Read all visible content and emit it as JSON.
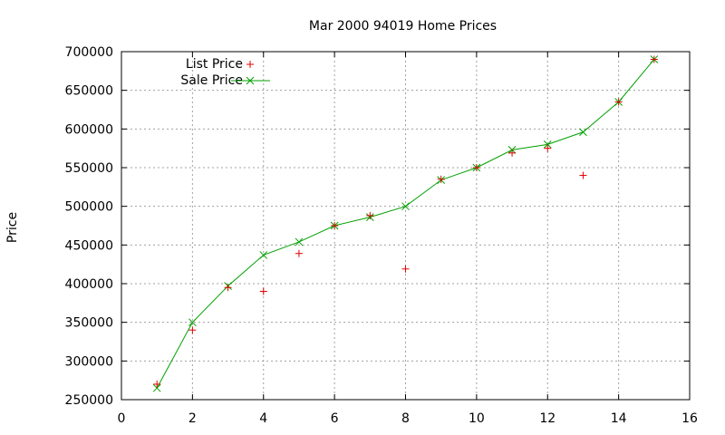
{
  "chart_data": {
    "type": "scatter",
    "title": "Mar 2000 94019 Home Prices",
    "xlabel": "",
    "ylabel": "Price",
    "xlim": [
      0,
      16
    ],
    "ylim": [
      250000,
      700000
    ],
    "xticks": [
      0,
      2,
      4,
      6,
      8,
      10,
      12,
      14,
      16
    ],
    "yticks": [
      250000,
      300000,
      350000,
      400000,
      450000,
      500000,
      550000,
      600000,
      650000,
      700000
    ],
    "grid": true,
    "legend_position": "top-left",
    "series": [
      {
        "name": "List Price",
        "style": "points",
        "marker": "plus",
        "color": "#e00000",
        "x": [
          1,
          2,
          3,
          4,
          5,
          6,
          7,
          8,
          9,
          10,
          11,
          12,
          13,
          14,
          15
        ],
        "y": [
          270000,
          340000,
          395000,
          390000,
          439000,
          475000,
          488000,
          419000,
          535000,
          550000,
          569000,
          575000,
          540000,
          635000,
          690000
        ]
      },
      {
        "name": "Sale Price",
        "style": "linespoints",
        "marker": "cross",
        "color": "#00a000",
        "x": [
          1,
          2,
          3,
          4,
          5,
          6,
          7,
          8,
          9,
          10,
          11,
          12,
          13,
          14,
          15
        ],
        "y": [
          265000,
          350000,
          397000,
          437000,
          454000,
          475000,
          486000,
          500000,
          534000,
          550000,
          573000,
          580000,
          596000,
          635000,
          690000
        ]
      }
    ]
  }
}
